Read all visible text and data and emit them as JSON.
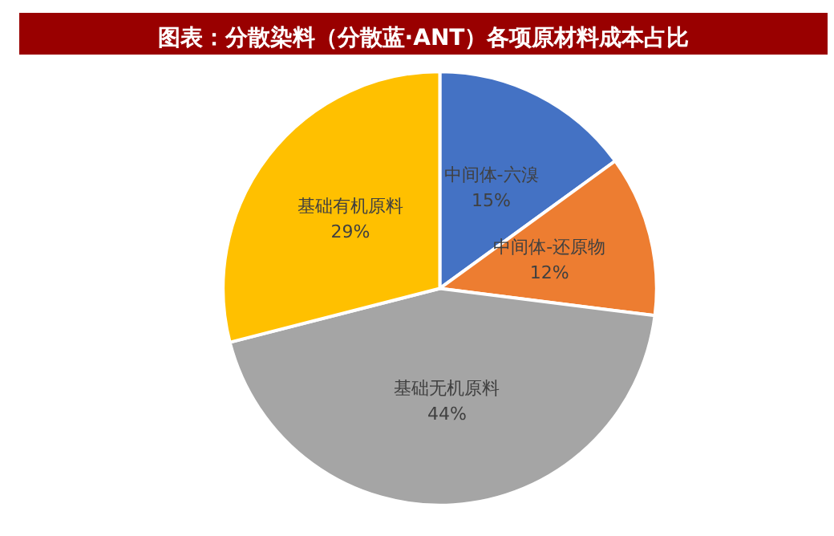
{
  "chart_data": {
    "type": "pie",
    "title": "图表：分散染料（分散蓝·ANT）各项原材料成本占比",
    "categories": [
      "中间体-六溴",
      "中间体-还原物",
      "基础无机原料",
      "基础有机原料"
    ],
    "values": [
      15,
      12,
      44,
      29
    ],
    "colors": [
      "#4472c4",
      "#ed7d31",
      "#a5a5a5",
      "#ffc000"
    ],
    "value_labels": [
      "15%",
      "12%",
      "44%",
      "29%"
    ],
    "legend": false
  }
}
